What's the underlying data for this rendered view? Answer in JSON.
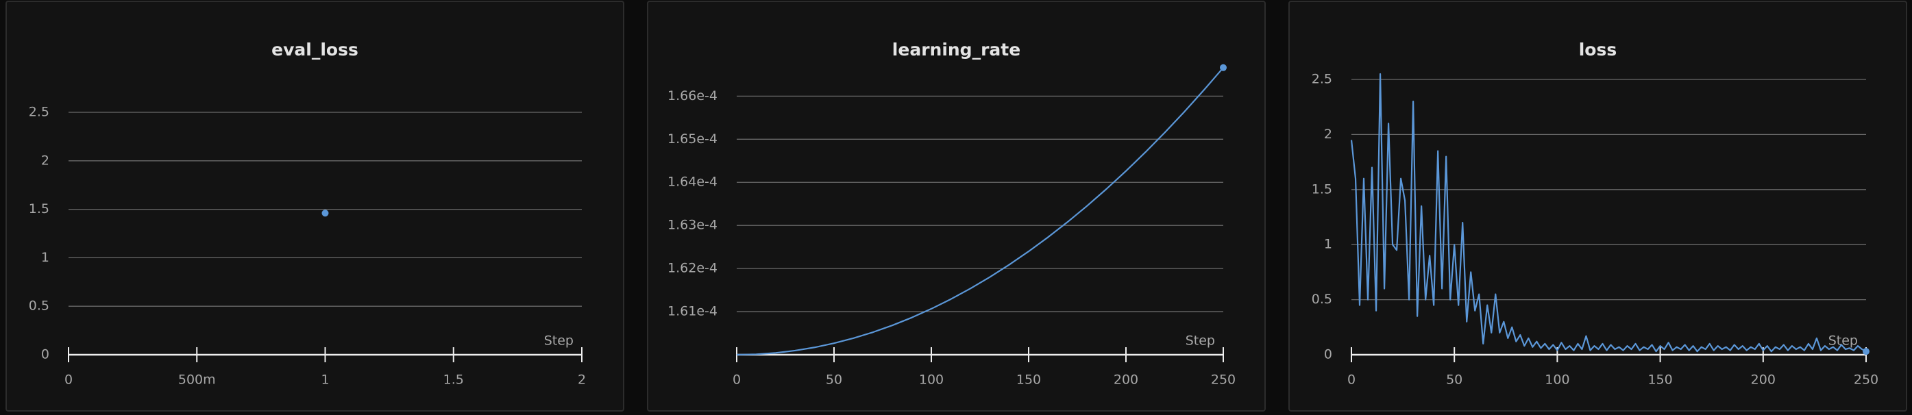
{
  "chart_data": [
    {
      "type": "line",
      "title": "eval_loss",
      "x_label": "Step",
      "color": "#5b97d8",
      "x": [
        1
      ],
      "values": [
        1.46
      ],
      "xlim": [
        0,
        2
      ],
      "xticks": [
        0,
        {
          "value": 0.5,
          "label": "500m"
        },
        1,
        1.5,
        2
      ],
      "ylim": [
        0,
        2.5
      ],
      "yticks": [
        0,
        0.5,
        1,
        1.5,
        2,
        2.5
      ],
      "grid": true
    },
    {
      "type": "line",
      "title": "learning_rate",
      "x_label": "Step",
      "color": "#5b97d8",
      "x": [
        0,
        10,
        20,
        30,
        40,
        50,
        60,
        70,
        80,
        90,
        100,
        110,
        120,
        130,
        140,
        150,
        160,
        170,
        180,
        190,
        200,
        210,
        220,
        230,
        240,
        250
      ],
      "values": [
        0.00016,
        0.0001600107,
        0.0001600426,
        0.0001600959,
        0.0001601705,
        0.0001602664,
        0.0001603836,
        0.0001605221,
        0.000160682,
        0.0001608631,
        0.0001610656,
        0.0001612894,
        0.0001615345,
        0.0001618009,
        0.0001620886,
        0.0001623976,
        0.0001627279,
        0.0001630796,
        0.0001634525,
        0.0001638468,
        0.0001642624,
        0.0001646993,
        0.0001651575,
        0.000165637,
        0.0001661379,
        0.00016666
      ],
      "xlim": [
        0,
        250
      ],
      "xticks": [
        0,
        50,
        100,
        150,
        200,
        250
      ],
      "ylim": [
        0.00016,
        0.0001668
      ],
      "yticks": [
        {
          "value": 0.000161,
          "label": "1.61e-4"
        },
        {
          "value": 0.000162,
          "label": "1.62e-4"
        },
        {
          "value": 0.000163,
          "label": "1.63e-4"
        },
        {
          "value": 0.000164,
          "label": "1.64e-4"
        },
        {
          "value": 0.000165,
          "label": "1.65e-4"
        },
        {
          "value": 0.000166,
          "label": "1.66e-4"
        }
      ],
      "grid": true
    },
    {
      "type": "line",
      "title": "loss",
      "x_label": "Step",
      "color": "#5b97d8",
      "x": [
        0,
        2,
        4,
        6,
        8,
        10,
        12,
        14,
        16,
        18,
        20,
        22,
        24,
        26,
        28,
        30,
        32,
        34,
        36,
        38,
        40,
        42,
        44,
        46,
        48,
        50,
        52,
        54,
        56,
        58,
        60,
        62,
        64,
        66,
        68,
        70,
        72,
        74,
        76,
        78,
        80,
        82,
        84,
        86,
        88,
        90,
        92,
        94,
        96,
        98,
        100,
        102,
        104,
        106,
        108,
        110,
        112,
        114,
        116,
        118,
        120,
        122,
        124,
        126,
        128,
        130,
        132,
        134,
        136,
        138,
        140,
        142,
        144,
        146,
        148,
        150,
        152,
        154,
        156,
        158,
        160,
        162,
        164,
        166,
        168,
        170,
        172,
        174,
        176,
        178,
        180,
        182,
        184,
        186,
        188,
        190,
        192,
        194,
        196,
        198,
        200,
        202,
        204,
        206,
        208,
        210,
        212,
        214,
        216,
        218,
        220,
        222,
        224,
        226,
        228,
        230,
        232,
        234,
        236,
        238,
        240,
        242,
        244,
        246,
        248,
        250
      ],
      "values": [
        1.95,
        1.6,
        0.45,
        1.6,
        0.5,
        1.7,
        0.4,
        2.55,
        0.6,
        2.1,
        1.0,
        0.95,
        1.6,
        1.4,
        0.5,
        2.3,
        0.35,
        1.35,
        0.5,
        0.9,
        0.45,
        1.85,
        0.6,
        1.8,
        0.5,
        1.0,
        0.45,
        1.2,
        0.3,
        0.75,
        0.4,
        0.55,
        0.1,
        0.45,
        0.2,
        0.55,
        0.2,
        0.3,
        0.15,
        0.25,
        0.12,
        0.18,
        0.08,
        0.15,
        0.07,
        0.12,
        0.06,
        0.1,
        0.05,
        0.09,
        0.04,
        0.11,
        0.05,
        0.08,
        0.04,
        0.1,
        0.05,
        0.17,
        0.04,
        0.08,
        0.05,
        0.1,
        0.04,
        0.09,
        0.05,
        0.07,
        0.04,
        0.08,
        0.05,
        0.1,
        0.04,
        0.07,
        0.05,
        0.09,
        0.03,
        0.08,
        0.05,
        0.11,
        0.04,
        0.07,
        0.05,
        0.09,
        0.04,
        0.08,
        0.03,
        0.07,
        0.05,
        0.1,
        0.04,
        0.08,
        0.05,
        0.07,
        0.04,
        0.09,
        0.05,
        0.08,
        0.04,
        0.07,
        0.05,
        0.1,
        0.04,
        0.08,
        0.03,
        0.07,
        0.05,
        0.09,
        0.04,
        0.08,
        0.05,
        0.07,
        0.04,
        0.1,
        0.05,
        0.15,
        0.04,
        0.08,
        0.05,
        0.07,
        0.04,
        0.09,
        0.05,
        0.06,
        0.04,
        0.08,
        0.05,
        0.03
      ],
      "xlim": [
        0,
        250
      ],
      "xticks": [
        0,
        50,
        100,
        150,
        200,
        250
      ],
      "ylim": [
        0,
        2.5
      ],
      "yticks": [
        0,
        0.5,
        1,
        1.5,
        2,
        2.5
      ],
      "grid": true
    }
  ]
}
